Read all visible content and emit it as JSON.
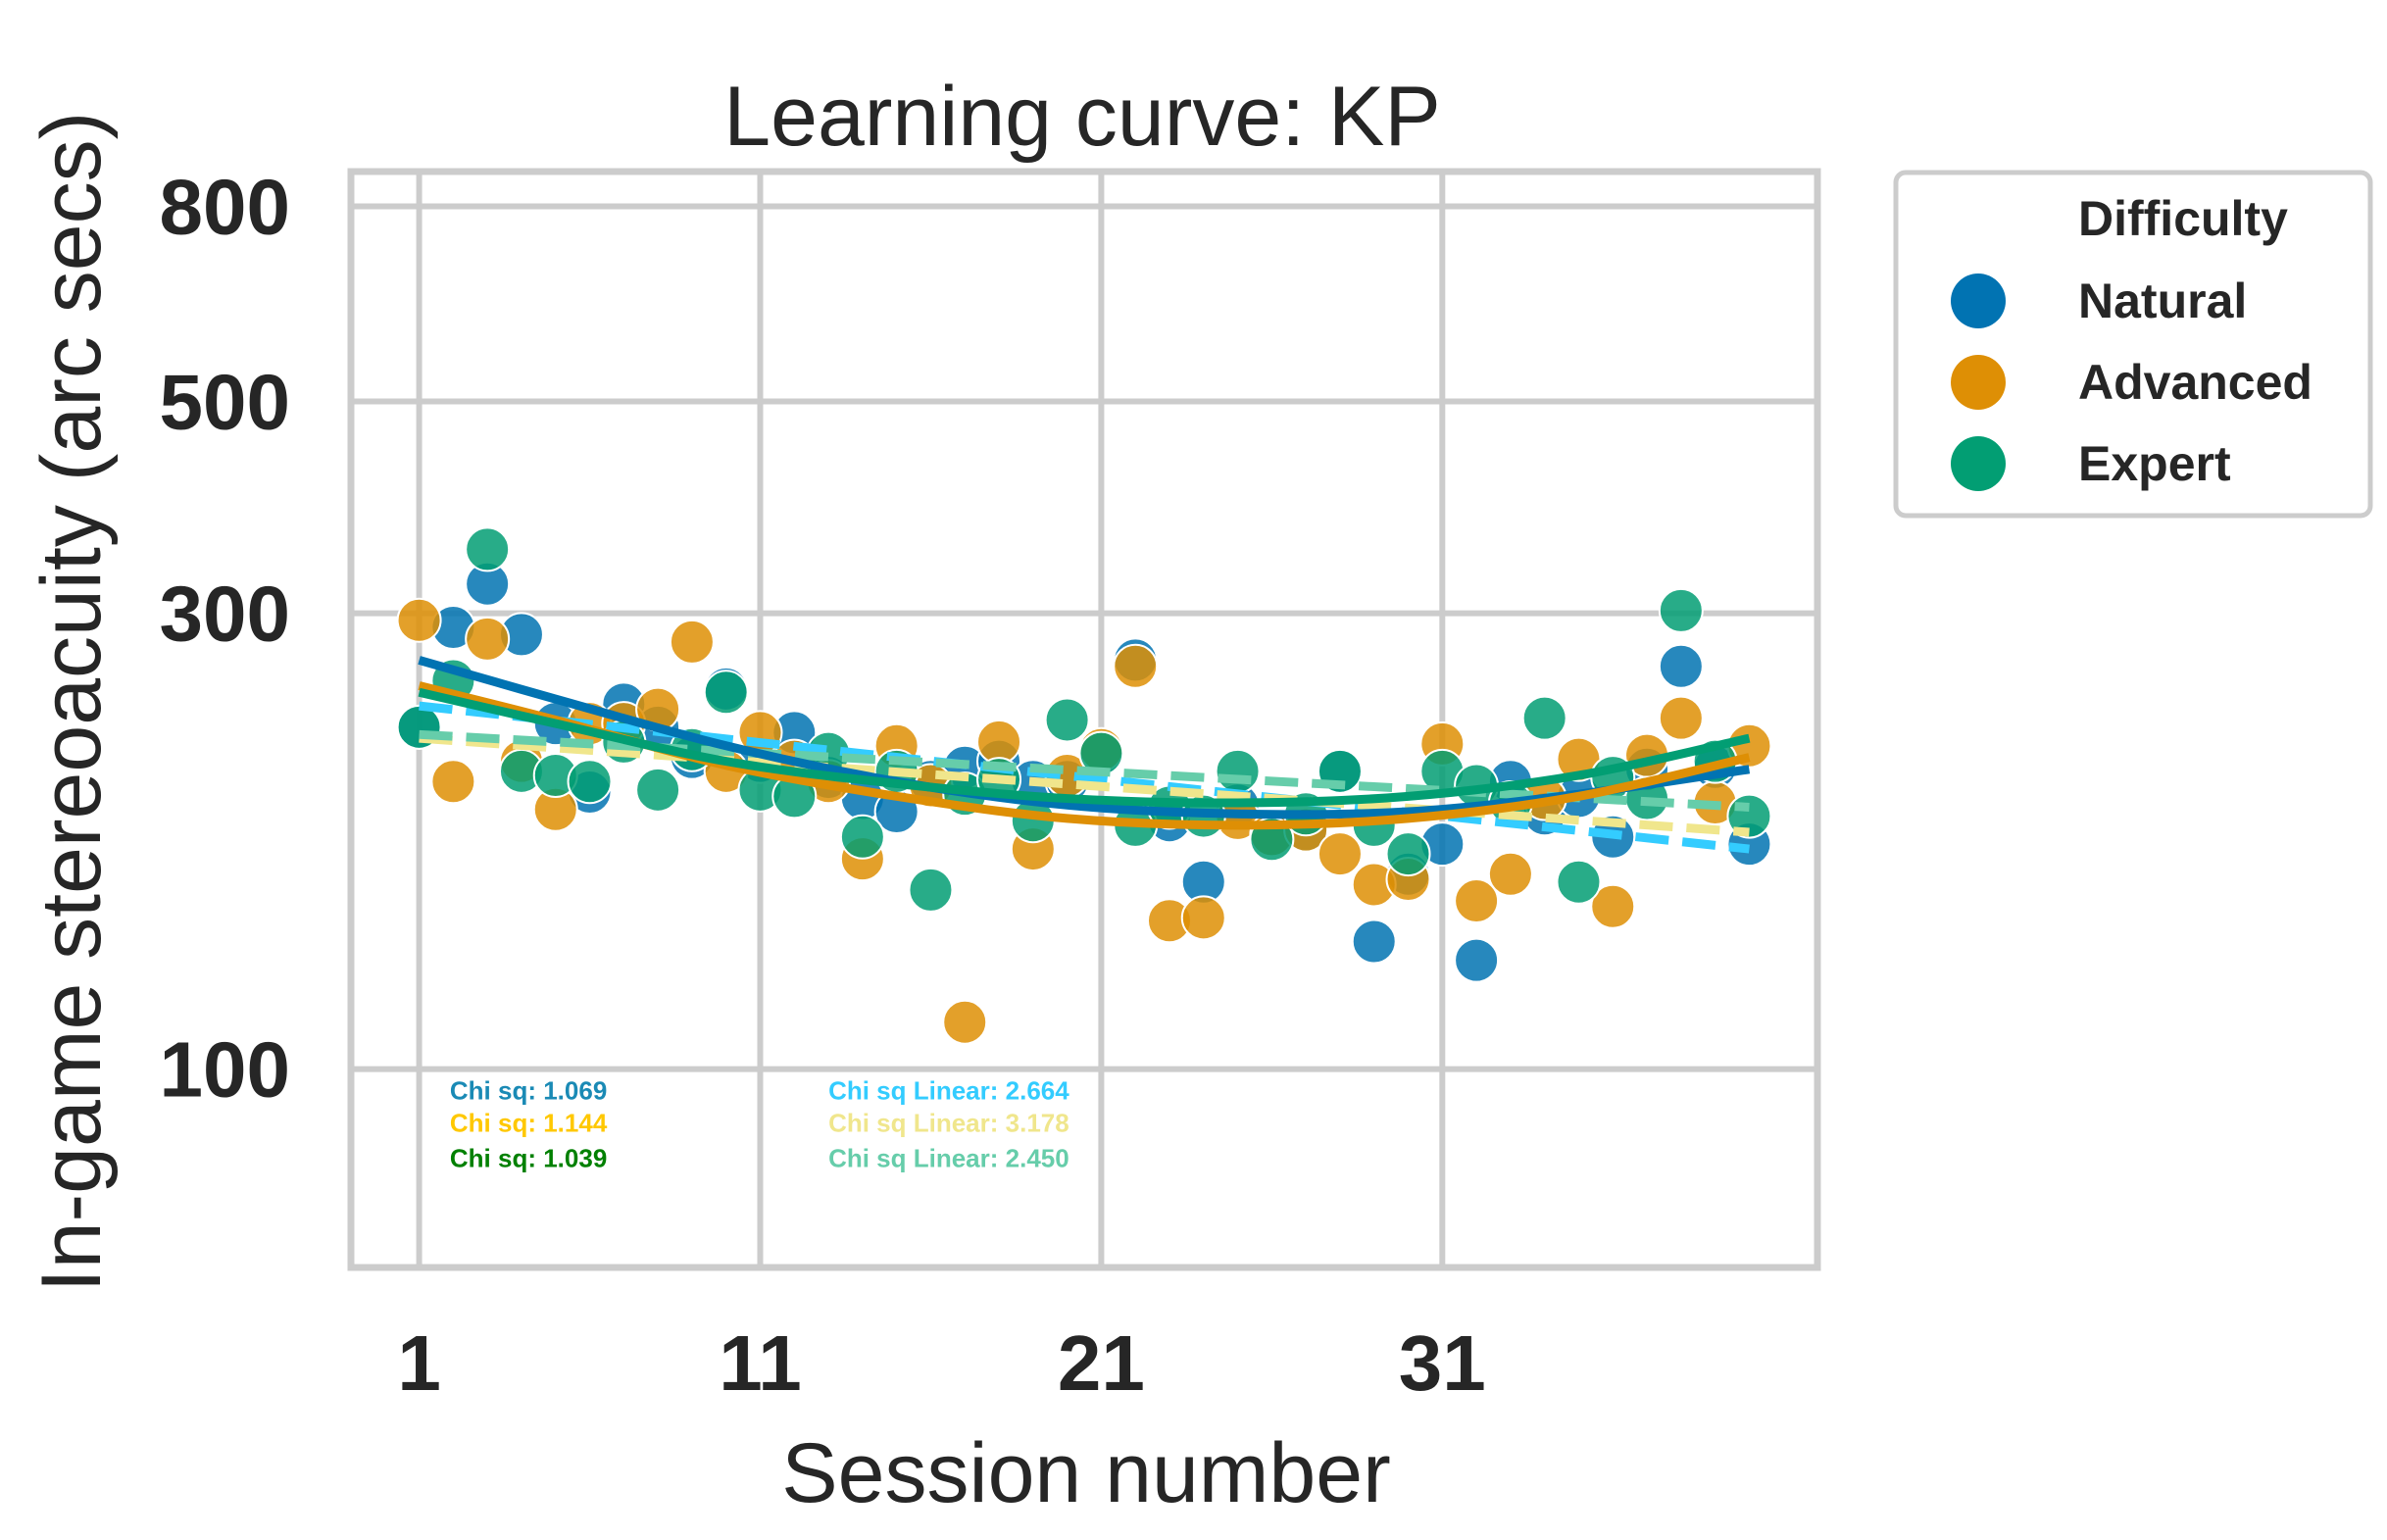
{
  "chart_data": {
    "type": "scatter",
    "title": "Learning curve: KP",
    "xlabel": "Session number",
    "ylabel": "In-game stereoacuity (arc secs)",
    "y_scale": "log",
    "xlim": [
      -1,
      42
    ],
    "ylim": [
      62,
      870
    ],
    "x_ticks": [
      1,
      11,
      21,
      31
    ],
    "x_tick_labels": [
      "1",
      "11",
      "21",
      "31"
    ],
    "y_ticks": [
      100,
      300,
      500,
      800
    ],
    "y_tick_labels": [
      "100",
      "300",
      "500",
      "800"
    ],
    "grid": true,
    "legend": {
      "title": "Difficulty",
      "placement": "outside-top-right",
      "entries": [
        "Natural",
        "Advanced",
        "Expert"
      ]
    },
    "colors": {
      "Natural": "#0173b2",
      "Advanced": "#de8f05",
      "Expert": "#029e73",
      "fit_natural": "#0173b2",
      "fit_advanced": "#de8f05",
      "fit_expert": "#029e73",
      "linear_natural": "#33ccff",
      "linear_advanced": "#f0e68c",
      "linear_expert": "#66cdaa",
      "ann_natural": "#1a8ab5",
      "ann_advanced": "#ffc800",
      "ann_expert": "#008000",
      "ann_lin_natural": "#33ccff",
      "ann_lin_advanced": "#f0e68c",
      "ann_lin_expert": "#66cdaa"
    },
    "series": [
      {
        "name": "Natural",
        "x": [
          1,
          2,
          3,
          4,
          5,
          6,
          7,
          8,
          9,
          10,
          11,
          12,
          13,
          14,
          15,
          16,
          17,
          18,
          19,
          20,
          21,
          22,
          23,
          24,
          25,
          26,
          27,
          28,
          29,
          30,
          31,
          32,
          33,
          34,
          35,
          36,
          37,
          38,
          39,
          40
        ],
        "y": [
          228,
          290,
          322,
          285,
          230,
          195,
          241,
          228,
          212,
          250,
          210,
          225,
          202,
          192,
          186,
          200,
          207,
          210,
          200,
          200,
          214,
          268,
          182,
          157,
          189,
          176,
          178,
          205,
          136,
          160,
          172,
          130,
          200,
          185,
          193,
          175,
          206,
          264,
          207,
          172
        ]
      },
      {
        "name": "Advanced",
        "x": [
          1,
          2,
          3,
          4,
          5,
          6,
          7,
          8,
          9,
          10,
          11,
          12,
          13,
          14,
          15,
          16,
          17,
          18,
          19,
          20,
          21,
          22,
          23,
          24,
          25,
          26,
          27,
          28,
          29,
          30,
          31,
          32,
          33,
          34,
          35,
          36,
          37,
          38,
          39,
          40
        ],
        "y": [
          295,
          200,
          282,
          210,
          187,
          230,
          230,
          238,
          280,
          205,
          225,
          210,
          200,
          166,
          218,
          198,
          112,
          220,
          170,
          203,
          216,
          264,
          143,
          144,
          183,
          176,
          178,
          168,
          156,
          158,
          219,
          150,
          160,
          192,
          211,
          148,
          213,
          233,
          190,
          218
        ]
      },
      {
        "name": "Expert",
        "x": [
          1,
          2,
          3,
          4,
          5,
          6,
          7,
          8,
          9,
          10,
          11,
          12,
          13,
          14,
          15,
          16,
          17,
          18,
          19,
          20,
          21,
          22,
          23,
          24,
          25,
          26,
          27,
          28,
          29,
          30,
          31,
          32,
          33,
          34,
          35,
          36,
          37,
          38,
          39,
          40
        ],
        "y": [
          228,
          255,
          350,
          205,
          203,
          200,
          220,
          196,
          216,
          248,
          196,
          193,
          214,
          175,
          205,
          154,
          194,
          201,
          182,
          232,
          214,
          180,
          188,
          184,
          205,
          174,
          185,
          205,
          180,
          168,
          205,
          198,
          190,
          233,
          157,
          202,
          192,
          302,
          210,
          184
        ]
      }
    ],
    "fits": [
      {
        "series": "Natural",
        "kind": "quadratic",
        "x": [
          1,
          40
        ],
        "y_at": [
          [
            1,
            268
          ],
          [
            5,
            244
          ],
          [
            10,
            218
          ],
          [
            15,
            200
          ],
          [
            20,
            189
          ],
          [
            25,
            185
          ],
          [
            30,
            186
          ],
          [
            35,
            194
          ],
          [
            40,
            206
          ]
        ]
      },
      {
        "series": "Advanced",
        "kind": "quadratic",
        "x": [
          1,
          40
        ],
        "y_at": [
          [
            1,
            252
          ],
          [
            5,
            232
          ],
          [
            10,
            208
          ],
          [
            15,
            193
          ],
          [
            20,
            183
          ],
          [
            25,
            180
          ],
          [
            30,
            183
          ],
          [
            35,
            193
          ],
          [
            40,
            212
          ]
        ]
      },
      {
        "series": "Expert",
        "kind": "quadratic",
        "x": [
          1,
          40
        ],
        "y_at": [
          [
            1,
            248
          ],
          [
            5,
            230
          ],
          [
            10,
            210
          ],
          [
            15,
            199
          ],
          [
            20,
            192
          ],
          [
            25,
            190
          ],
          [
            30,
            193
          ],
          [
            35,
            203
          ],
          [
            40,
            222
          ]
        ]
      },
      {
        "series": "Natural",
        "kind": "linear",
        "x": [
          1,
          40
        ],
        "y": [
          240,
          170
        ]
      },
      {
        "series": "Advanced",
        "kind": "linear",
        "x": [
          1,
          40
        ],
        "y": [
          222,
          177
        ]
      },
      {
        "series": "Expert",
        "kind": "linear",
        "x": [
          1,
          40
        ],
        "y": [
          224,
          188
        ]
      }
    ],
    "annotations": [
      {
        "text": "Chi sq: 1.069",
        "x": 1.9,
        "y": 93,
        "color_key": "ann_natural"
      },
      {
        "text": "Chi sq: 1.144",
        "x": 1.9,
        "y": 86,
        "color_key": "ann_advanced"
      },
      {
        "text": "Chi sq: 1.039",
        "x": 1.9,
        "y": 79,
        "color_key": "ann_expert"
      },
      {
        "text": "Chi sq Linear: 2.664",
        "x": 13,
        "y": 93,
        "color_key": "ann_lin_natural"
      },
      {
        "text": "Chi sq Linear: 3.178",
        "x": 13,
        "y": 86,
        "color_key": "ann_lin_advanced"
      },
      {
        "text": "Chi sq Linear: 2.450",
        "x": 13,
        "y": 79,
        "color_key": "ann_lin_expert"
      }
    ]
  }
}
